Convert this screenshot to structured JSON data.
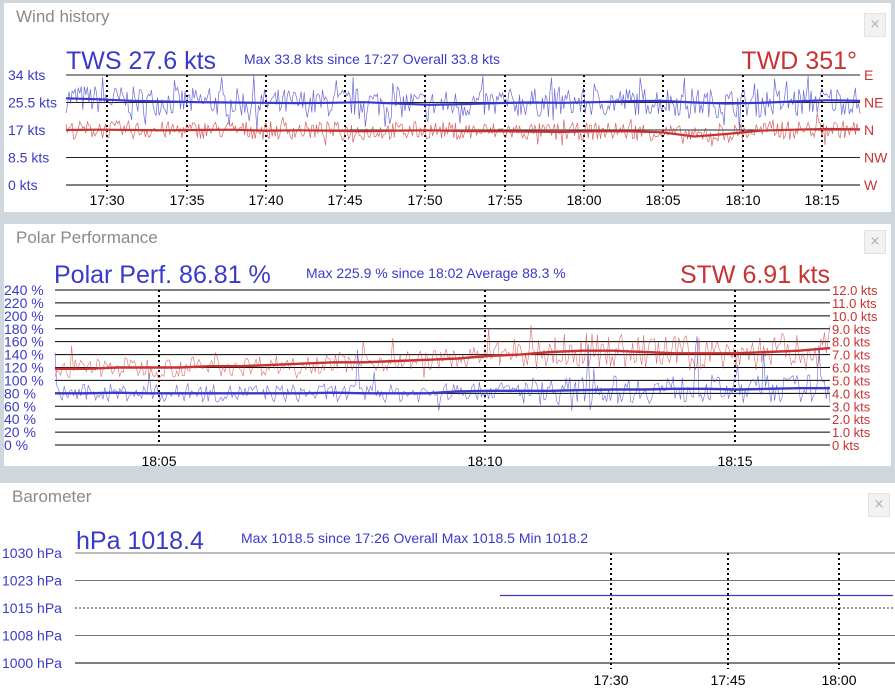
{
  "colors": {
    "tws": "#3a3ac8",
    "twd": "#c83232",
    "background": "#ffffff",
    "title": "#8a8a8a"
  },
  "wind": {
    "title": "Wind history",
    "close_icon": "×",
    "tws_label": "TWS 27.6 kts",
    "tws_stats": "Max 33.8 kts since 17:27  Overall 33.8 kts",
    "twd_label": "TWD 351°",
    "chart_data": {
      "type": "line",
      "left_ticks": [
        "34 kts",
        "25.5 kts",
        "17 kts",
        "8.5 kts",
        "0 kts"
      ],
      "right_ticks": [
        "E",
        "NE",
        "N",
        "NW",
        "W"
      ],
      "x_ticks": [
        "17:30",
        "17:35",
        "17:40",
        "17:45",
        "17:50",
        "17:55",
        "18:00",
        "18:05",
        "18:10",
        "18:15"
      ],
      "ylim": [
        0,
        34
      ],
      "series": [
        {
          "values": [
            26.8,
            26.5,
            26.0,
            25.8,
            25.6,
            25.5,
            25.4,
            25.3,
            25.4,
            25.6,
            25.2,
            24.8,
            25.0,
            25.3,
            25.5,
            25.4,
            25.6,
            25.9,
            26.0,
            25.5,
            25.2,
            25.4,
            25.8,
            26.2,
            26.0
          ]
        },
        {
          "values": [
            17.0,
            17.1,
            17.0,
            16.9,
            17.0,
            17.1,
            16.8,
            16.9,
            16.8,
            16.6,
            16.8,
            16.9,
            16.7,
            16.6,
            16.5,
            16.4,
            16.6,
            16.6,
            16.3,
            15.0,
            15.8,
            16.8,
            17.1,
            17.3,
            17.2
          ]
        }
      ]
    }
  },
  "polar": {
    "title": "Polar Performance",
    "close_icon": "×",
    "perf_label": "Polar Perf. 86.81 %",
    "perf_stats": "Max 225.9 % since 18:02  Average 88.3 %",
    "stw_label": "STW 6.91 kts",
    "chart_data": {
      "type": "line",
      "left_ticks": [
        "240 %",
        "220 %",
        "200 %",
        "180 %",
        "160 %",
        "140 %",
        "120 %",
        "100 %",
        "80 %",
        "60 %",
        "40 %",
        "20 %",
        "0 %"
      ],
      "right_ticks": [
        "12.0 kts",
        "11.0 kts",
        "10.0 kts",
        "9.0 kts",
        "8.0 kts",
        "7.0 kts",
        "6.0 kts",
        "5.0 kts",
        "4.0 kts",
        "3.0 kts",
        "2.0 kts",
        "1.0 kts",
        "0 kts"
      ],
      "x_ticks": [
        "18:05",
        "18:10",
        "18:15"
      ],
      "ylim": [
        0,
        240
      ],
      "series": [
        {
          "values": [
            80,
            80,
            81,
            80,
            80,
            80,
            80,
            80,
            80,
            81,
            80,
            80,
            80,
            83,
            84,
            84,
            84,
            85,
            86,
            86,
            87,
            87,
            86,
            87,
            88,
            88
          ]
        },
        {
          "values": [
            5.9,
            5.9,
            6.0,
            6.0,
            6.0,
            6.1,
            6.1,
            6.2,
            6.3,
            6.4,
            6.4,
            6.5,
            6.6,
            6.7,
            6.9,
            7.0,
            7.2,
            7.3,
            7.3,
            7.2,
            7.1,
            7.1,
            7.1,
            7.2,
            7.3,
            7.5
          ]
        }
      ]
    }
  },
  "baro": {
    "title": "Barometer",
    "close_icon": "×",
    "hpa_label": "hPa 1018.4",
    "hpa_stats": "Max 1018.5 since 17:26  Overall Max 1018.5 Min 1018.2",
    "chart_data": {
      "type": "line",
      "left_ticks": [
        "1030 hPa",
        "1023 hPa",
        "1015 hPa",
        "1008 hPa",
        "1000 hPa"
      ],
      "x_ticks": [
        "17:30",
        "17:45",
        "18:00"
      ],
      "ylim": [
        1000,
        1030
      ],
      "series": [
        {
          "values": [
            1018.4,
            1018.4,
            1018.4,
            1018.4,
            1018.4
          ]
        }
      ]
    }
  }
}
